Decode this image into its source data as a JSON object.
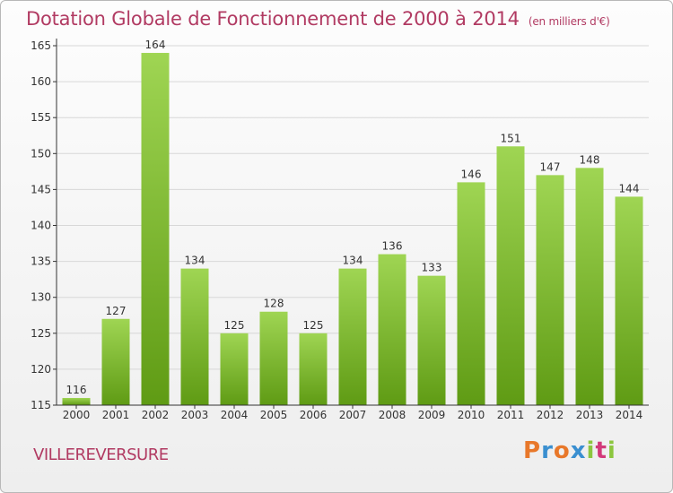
{
  "header": {
    "title": "Dotation Globale de Fonctionnement de 2000 à 2014",
    "unit": "(en milliers d'€)"
  },
  "commune": "VILLEREVERSURE",
  "logo": {
    "letters": [
      "P",
      "r",
      "o",
      "x",
      "i",
      "t",
      "i"
    ],
    "colors": [
      "#e8782a",
      "#3a8fd0",
      "#e8782a",
      "#3a8fd0",
      "#8cc63f",
      "#d23a7a",
      "#8cc63f"
    ]
  },
  "chart_data": {
    "type": "bar",
    "categories": [
      "2000",
      "2001",
      "2002",
      "2003",
      "2004",
      "2005",
      "2006",
      "2007",
      "2008",
      "2009",
      "2010",
      "2011",
      "2012",
      "2013",
      "2014"
    ],
    "values": [
      116,
      127,
      164,
      134,
      125,
      128,
      125,
      134,
      136,
      133,
      146,
      151,
      147,
      148,
      144
    ],
    "title": "Dotation Globale de Fonctionnement de 2000 à 2014",
    "ylim": [
      115,
      165
    ],
    "yticks": [
      115,
      120,
      125,
      130,
      135,
      140,
      145,
      150,
      155,
      160,
      165
    ],
    "grid": true,
    "colors": {
      "bar_top": "#9fd553",
      "bar_bottom": "#5f9b14",
      "axis": "#333333",
      "grid": "#d8d8d8"
    }
  }
}
